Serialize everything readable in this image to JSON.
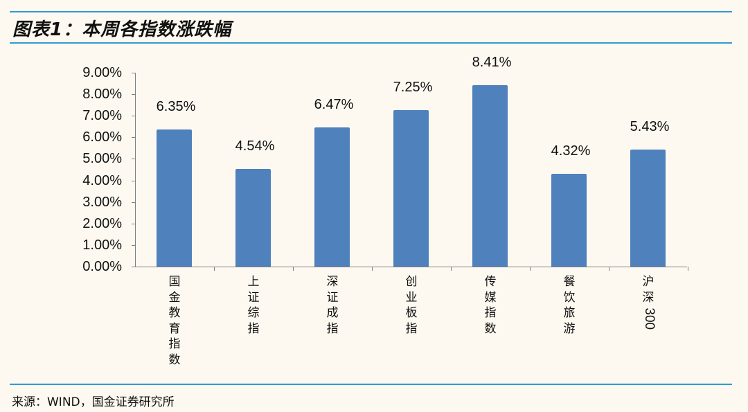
{
  "header": {
    "title": "图表1：本周各指数涨跌幅"
  },
  "footer": {
    "source": "来源：WIND，国金证券研究所"
  },
  "colors": {
    "bar": "#4f81bd",
    "rule": "#2e9bd6",
    "background": "#fdf9f0",
    "axis": "#7f7f7f"
  },
  "chart_data": {
    "type": "bar",
    "title": "本周各指数涨跌幅",
    "xlabel": "",
    "ylabel": "",
    "ylim": [
      0,
      9
    ],
    "y_ticks": [
      "0.00%",
      "1.00%",
      "2.00%",
      "3.00%",
      "4.00%",
      "5.00%",
      "6.00%",
      "7.00%",
      "8.00%",
      "9.00%"
    ],
    "categories": [
      "国金教育指数",
      "上证综指",
      "深证成指",
      "创业板指",
      "传媒指数",
      "餐饮旅游",
      "沪深300"
    ],
    "values": [
      6.35,
      4.54,
      6.47,
      7.25,
      8.41,
      4.32,
      5.43
    ],
    "data_labels": [
      "6.35%",
      "4.54%",
      "6.47%",
      "7.25%",
      "8.41%",
      "4.32%",
      "5.43%"
    ],
    "grid": false,
    "legend": "none",
    "unit": "%"
  }
}
